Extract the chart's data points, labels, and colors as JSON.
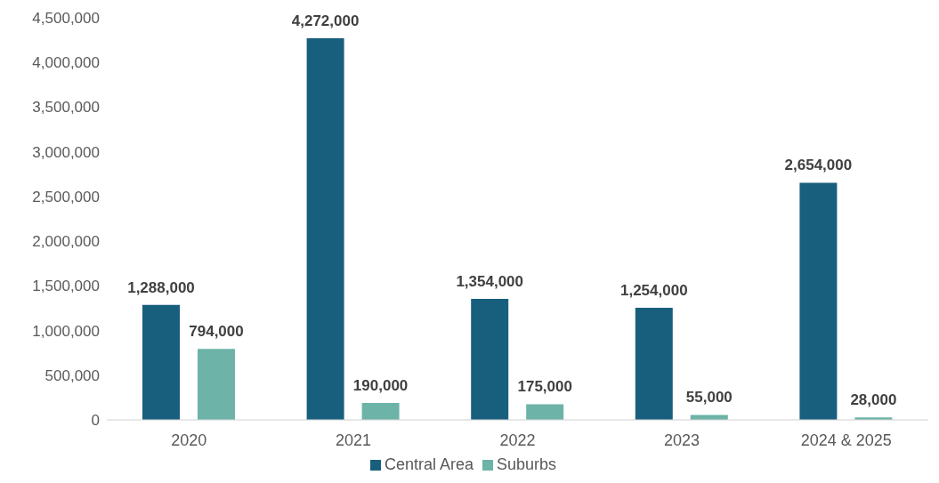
{
  "chart_data": {
    "type": "bar",
    "categories": [
      "2020",
      "2021",
      "2022",
      "2023",
      "2024 & 2025"
    ],
    "series": [
      {
        "name": "Central Area",
        "color": "#185f7e",
        "values": [
          1288000,
          4272000,
          1354000,
          1254000,
          2654000
        ],
        "value_labels": [
          "1,288,000",
          "4,272,000",
          "1,354,000",
          "1,254,000",
          "2,654,000"
        ]
      },
      {
        "name": "Suburbs",
        "color": "#6db3a7",
        "values": [
          794000,
          190000,
          175000,
          55000,
          28000
        ],
        "value_labels": [
          "794,000",
          "190,000",
          "175,000",
          "55,000",
          "28,000"
        ]
      }
    ],
    "ylim": [
      0,
      4500000
    ],
    "yticks": [
      0,
      {
        "value": 500000,
        "label": "500,000"
      },
      {
        "value": 1000000,
        "label": "1,000,000"
      },
      {
        "value": 1500000,
        "label": "1,500,000"
      },
      {
        "value": 2000000,
        "label": "2,000,000"
      },
      {
        "value": 2500000,
        "label": "2,500,000"
      },
      {
        "value": 3000000,
        "label": "3,000,000"
      },
      {
        "value": 3500000,
        "label": "3,500,000"
      },
      {
        "value": 4000000,
        "label": "4,000,000"
      },
      {
        "value": 4500000,
        "label": "4,500,000"
      }
    ],
    "grid": false,
    "legend": "bottom"
  }
}
